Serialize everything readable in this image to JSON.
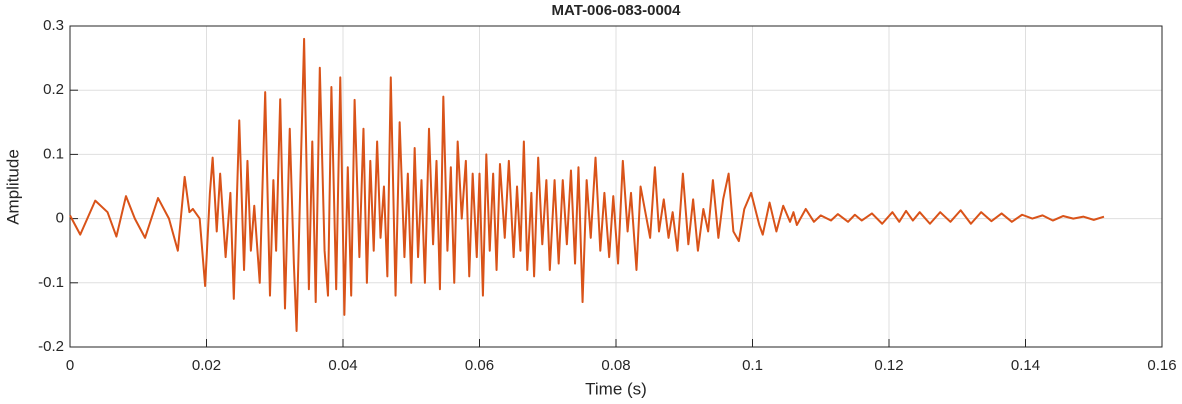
{
  "chart_data": {
    "type": "line",
    "title": "MAT-006-083-0004",
    "x_label": "Time (s)",
    "y_label": "Amplitude",
    "xlim": [
      0,
      0.16
    ],
    "xticks": [
      0,
      0.02,
      0.04,
      0.06,
      0.08,
      0.1,
      0.12,
      0.14,
      0.16
    ],
    "ylim": [
      -0.2,
      0.3
    ],
    "yticks": [
      -0.2,
      -0.1,
      0,
      0.1,
      0.2,
      0.3
    ],
    "grid": true,
    "x": [
      0,
      0.0015,
      0.0037,
      0.0055,
      0.0068,
      0.0082,
      0.0095,
      0.011,
      0.0129,
      0.0145,
      0.0158,
      0.0168,
      0.0175,
      0.018,
      0.019,
      0.0198,
      0.0205,
      0.0209,
      0.0215,
      0.022,
      0.0228,
      0.0235,
      0.024,
      0.0248,
      0.0255,
      0.026,
      0.0265,
      0.027,
      0.0278,
      0.0286,
      0.0293,
      0.0298,
      0.0302,
      0.0308,
      0.0315,
      0.0322,
      0.0328,
      0.0332,
      0.0338,
      0.0343,
      0.035,
      0.0355,
      0.036,
      0.0366,
      0.0373,
      0.0378,
      0.0383,
      0.039,
      0.0396,
      0.0402,
      0.0407,
      0.0412,
      0.0417,
      0.0424,
      0.043,
      0.0435,
      0.044,
      0.0445,
      0.045,
      0.0455,
      0.046,
      0.0465,
      0.047,
      0.0477,
      0.0483,
      0.049,
      0.0495,
      0.05,
      0.0505,
      0.051,
      0.0515,
      0.052,
      0.0526,
      0.0532,
      0.0537,
      0.0542,
      0.0547,
      0.0553,
      0.0558,
      0.0563,
      0.0568,
      0.0574,
      0.058,
      0.0585,
      0.059,
      0.0596,
      0.06,
      0.0605,
      0.061,
      0.0615,
      0.062,
      0.0625,
      0.063,
      0.0637,
      0.0643,
      0.065,
      0.0655,
      0.066,
      0.0665,
      0.067,
      0.0676,
      0.068,
      0.0686,
      0.0692,
      0.0698,
      0.0703,
      0.071,
      0.0716,
      0.0722,
      0.0728,
      0.0734,
      0.074,
      0.0745,
      0.0751,
      0.0757,
      0.0763,
      0.077,
      0.0777,
      0.0783,
      0.079,
      0.0796,
      0.0803,
      0.081,
      0.0817,
      0.0822,
      0.083,
      0.0836,
      0.0843,
      0.085,
      0.0857,
      0.0863,
      0.087,
      0.0877,
      0.0883,
      0.089,
      0.0898,
      0.0906,
      0.0913,
      0.092,
      0.0928,
      0.0935,
      0.0942,
      0.095,
      0.0957,
      0.0965,
      0.0972,
      0.098,
      0.0988,
      0.0998,
      0.101,
      0.1015,
      0.1025,
      0.1035,
      0.1045,
      0.1055,
      0.106,
      0.1065,
      0.1078,
      0.109,
      0.11,
      0.1115,
      0.1125,
      0.114,
      0.115,
      0.116,
      0.1175,
      0.119,
      0.1205,
      0.1215,
      0.1225,
      0.1235,
      0.1245,
      0.126,
      0.1275,
      0.129,
      0.1305,
      0.132,
      0.1335,
      0.135,
      0.1365,
      0.138,
      0.1395,
      0.141,
      0.1425,
      0.144,
      0.1455,
      0.147,
      0.1485,
      0.15,
      0.1515
    ],
    "series": [
      {
        "name": "Amplitude",
        "color": "#d95319",
        "values": [
          0.005,
          -0.025,
          0.028,
          0.01,
          -0.028,
          0.035,
          0.0,
          -0.03,
          0.032,
          0.0,
          -0.05,
          0.065,
          0.01,
          0.015,
          0.0,
          -0.105,
          0.04,
          0.095,
          -0.02,
          0.07,
          -0.06,
          0.04,
          -0.125,
          0.153,
          -0.08,
          0.09,
          -0.05,
          0.02,
          -0.1,
          0.197,
          -0.12,
          0.06,
          -0.05,
          0.186,
          -0.14,
          0.14,
          -0.07,
          -0.175,
          0.075,
          0.28,
          -0.11,
          0.12,
          -0.13,
          0.235,
          -0.05,
          -0.12,
          0.205,
          -0.11,
          0.22,
          -0.15,
          0.08,
          -0.12,
          0.185,
          -0.06,
          0.14,
          -0.1,
          0.09,
          -0.05,
          0.12,
          -0.03,
          0.05,
          -0.09,
          0.22,
          -0.12,
          0.15,
          -0.06,
          0.07,
          -0.1,
          0.11,
          -0.06,
          0.06,
          -0.1,
          0.14,
          -0.04,
          0.09,
          -0.11,
          0.19,
          -0.05,
          0.08,
          -0.1,
          0.12,
          0.0,
          0.09,
          -0.09,
          0.07,
          -0.06,
          0.07,
          -0.12,
          0.1,
          -0.05,
          0.07,
          -0.08,
          0.085,
          -0.03,
          0.09,
          -0.06,
          0.05,
          -0.05,
          0.12,
          -0.08,
          0.04,
          -0.09,
          0.095,
          -0.04,
          0.06,
          -0.08,
          0.06,
          -0.07,
          0.06,
          -0.04,
          0.075,
          -0.07,
          0.08,
          -0.13,
          0.06,
          -0.03,
          0.095,
          -0.05,
          0.04,
          -0.06,
          0.035,
          -0.07,
          0.09,
          -0.02,
          0.04,
          -0.08,
          0.05,
          0.01,
          -0.03,
          0.08,
          -0.02,
          0.03,
          -0.03,
          0.01,
          -0.05,
          0.07,
          -0.04,
          0.03,
          -0.05,
          0.015,
          -0.02,
          0.06,
          -0.03,
          0.03,
          0.07,
          -0.02,
          -0.035,
          0.015,
          0.04,
          -0.01,
          -0.025,
          0.025,
          -0.02,
          0.02,
          -0.005,
          0.01,
          -0.01,
          0.015,
          -0.005,
          0.005,
          -0.003,
          0.007,
          -0.005,
          0.006,
          -0.003,
          0.008,
          -0.008,
          0.01,
          -0.005,
          0.012,
          -0.003,
          0.01,
          -0.008,
          0.01,
          -0.005,
          0.013,
          -0.008,
          0.01,
          -0.004,
          0.008,
          -0.005,
          0.006,
          0.0,
          0.005,
          -0.003,
          0.004,
          0.0,
          0.003,
          -0.002,
          0.003
        ]
      }
    ]
  }
}
